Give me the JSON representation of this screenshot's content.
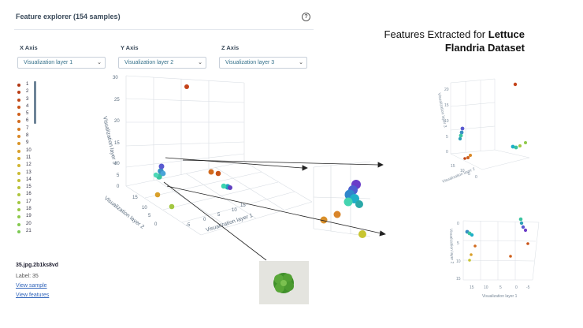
{
  "header": {
    "title": "Feature explorer (154 samples)",
    "help_glyph": "?"
  },
  "axes": [
    {
      "label": "X Axis",
      "value": "Visualization layer 1"
    },
    {
      "label": "Y Axis",
      "value": "Visualization layer 2"
    },
    {
      "label": "Z Axis",
      "value": "Visualization layer 3"
    }
  ],
  "legend": {
    "items": [
      "1",
      "2",
      "3",
      "4",
      "5",
      "6",
      "7",
      "8",
      "9",
      "10",
      "11",
      "12",
      "13",
      "14",
      "15",
      "16",
      "17",
      "18",
      "19",
      "20",
      "21"
    ],
    "colors": [
      "#b03512",
      "#b93c14",
      "#c04716",
      "#c85318",
      "#cf5f1b",
      "#d26b1e",
      "#d67b21",
      "#d98825",
      "#d99427",
      "#d9a02a",
      "#d6ac2d",
      "#d1b530",
      "#cbbb33",
      "#c2bf36",
      "#b9c23a",
      "#aec53d",
      "#a3c741",
      "#98c845",
      "#8ec94a",
      "#85c94f",
      "#7cc954"
    ]
  },
  "plot": {
    "z_ticks": [
      "25",
      "20",
      "15",
      "10",
      "5",
      "0"
    ],
    "y_ticks": [
      "15",
      "10",
      "5",
      "0"
    ],
    "x_ticks": [
      "15",
      "10",
      "5",
      "0",
      "-5"
    ],
    "x_title": "Visualization layer 1",
    "y_title": "Visualization layer 2",
    "z_title": "Visualization layer 3",
    "top_tick": "30"
  },
  "sample": {
    "name": "35.jpg.2b1ks8vd",
    "label": "Label: 35",
    "view_sample": "View sample",
    "view_features": "View features"
  },
  "caption": {
    "line1": "Features Extracted for ",
    "bold1": "Lettuce",
    "line2": "Flandria Dataset"
  },
  "mini_top": {
    "y_title": "Visualization layer 3",
    "x_title": "Visualization layer 2",
    "ticks": [
      "20",
      "15",
      "10",
      "5",
      "0"
    ],
    "x_ticks": [
      "15",
      "10",
      "5",
      "0"
    ]
  },
  "mini_bottom": {
    "y_title": "Visualization layer 2",
    "x_title": "Visualization layer 1",
    "ticks": [
      "0",
      "5",
      "10",
      "15"
    ],
    "x_ticks": [
      "15",
      "10",
      "5",
      "0",
      "-5"
    ]
  }
}
